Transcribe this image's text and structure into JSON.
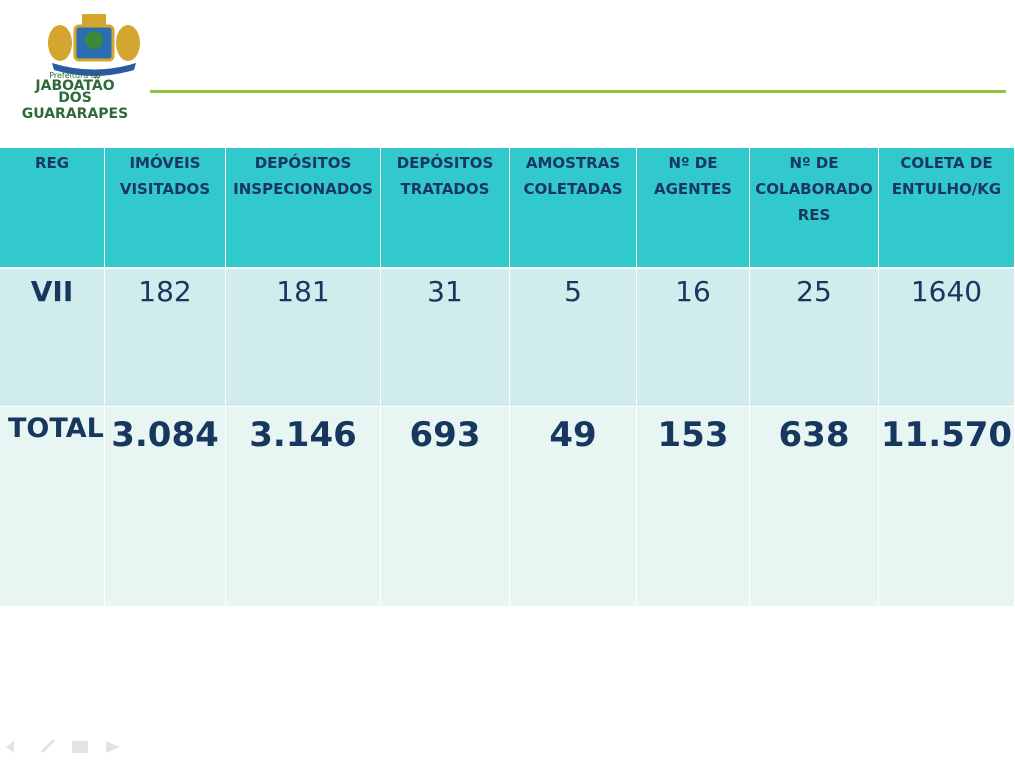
{
  "header": {
    "logo": {
      "prefix": "Prefeitura do",
      "line1": "JABOATÃO",
      "line2": "DOS GUARARAPES"
    }
  },
  "table": {
    "columns": [
      "REG",
      "IMÓVEIS VISITADOS",
      "DEPÓSITOS INSPECIONADOS",
      "DEPÓSITOS TRATADOS",
      "AMOSTRAS COLETADAS",
      "Nº DE AGENTES",
      "Nº DE COLABORADORES",
      "COLETA DE ENTULHO/KG"
    ],
    "rows": [
      [
        "VII",
        "182",
        "181",
        "31",
        "5",
        "16",
        "25",
        "1640"
      ],
      [
        "TOTAL",
        "3.084",
        "3.146",
        "693",
        "49",
        "153",
        "638",
        "11.570"
      ]
    ]
  }
}
